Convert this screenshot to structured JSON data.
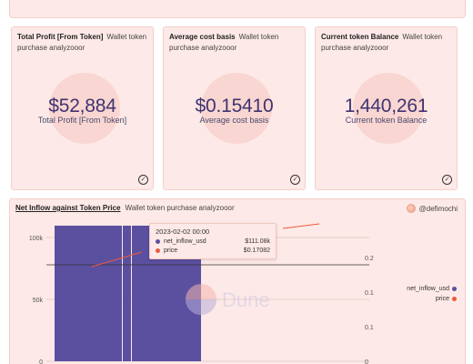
{
  "cards": [
    {
      "title": "Total Profit [From Token]",
      "subtitle": "Wallet token purchase analyzooor",
      "value": "$52,884",
      "value_label": "Total Profit [From Token]"
    },
    {
      "title": "Average cost basis",
      "subtitle": "Wallet token purchase analyzooor",
      "value": "$0.15410",
      "value_label": "Average cost basis"
    },
    {
      "title": "Current token Balance",
      "subtitle": "Wallet token purchase analyzooor",
      "value": "1,440,261",
      "value_label": "Current token Balance"
    }
  ],
  "chart_panel": {
    "title": "Net Inflow against Token Price",
    "subtitle": "Wallet token purchase analyzooor",
    "user": "@defimochi",
    "watermark": "Dune",
    "tooltip": {
      "date": "2023-02-02 00:00",
      "rows": [
        {
          "label": "net_inflow_usd",
          "value": "$111.08k",
          "color": "#5b4fa0"
        },
        {
          "label": "price",
          "value": "$0.17082",
          "color": "#f05a3c"
        }
      ]
    },
    "legend": [
      {
        "label": "net_inflow_usd",
        "color": "#5b4fa0"
      },
      {
        "label": "price",
        "color": "#f05a3c"
      }
    ]
  },
  "chart_data": {
    "type": "bar",
    "title": "Net Inflow against Token Price",
    "series": [
      {
        "name": "net_inflow_usd",
        "type": "bar",
        "axis": "left",
        "values": [
          111080,
          111080,
          111080
        ],
        "color": "#5b4fa0"
      },
      {
        "name": "price",
        "type": "line",
        "axis": "right",
        "values": [
          0.1708,
          0.21
        ],
        "color": "#f05a3c"
      }
    ],
    "y_left": {
      "ticks": [
        "0",
        "50k",
        "100k"
      ],
      "ylim": [
        0,
        118000
      ]
    },
    "y_right": {
      "ticks": [
        "0",
        "0.1",
        "0.1",
        "0.2"
      ],
      "ylim": [
        0,
        0.24
      ]
    },
    "grid": true,
    "legend_position": "right"
  }
}
